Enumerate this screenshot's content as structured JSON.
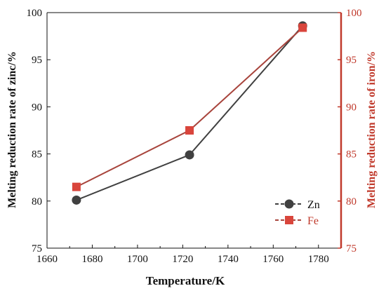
{
  "chart_data": {
    "type": "line",
    "x": [
      1673,
      1723,
      1773
    ],
    "series": [
      {
        "name": "Zn",
        "axis": "left",
        "values": [
          80.1,
          84.9,
          98.6
        ],
        "color": "#404040",
        "marker": "circle"
      },
      {
        "name": "Fe",
        "axis": "right",
        "values": [
          81.5,
          87.5,
          98.4
        ],
        "color": "#a8443c",
        "marker_color": "#d9453c",
        "marker": "square"
      }
    ],
    "xlabel": "Temperature/K",
    "ylabel_left": "Melting reduction rate of zinc/%",
    "ylabel_right": "Melting reduction rate of iron/%",
    "xlim": [
      1660,
      1790
    ],
    "ylim_left": [
      75,
      100
    ],
    "ylim_right": [
      75,
      100
    ],
    "xticks": [
      "1660",
      "1680",
      "1700",
      "1720",
      "1740",
      "1760",
      "1780"
    ],
    "yticks_left": [
      "75",
      "80",
      "85",
      "90",
      "95",
      "100"
    ],
    "yticks_right": [
      "75",
      "80",
      "85",
      "90",
      "95",
      "100"
    ],
    "legend_position": "lower-right",
    "grid": false,
    "colors": {
      "left_axis": "#111111",
      "right_axis": "#c0392b"
    }
  }
}
